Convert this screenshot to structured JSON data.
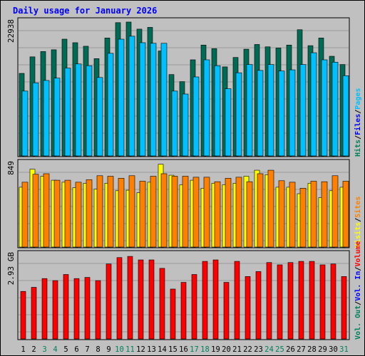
{
  "title": "Daily usage for January 2026",
  "colors": {
    "page_bg": "#c0c0c0",
    "title": "#0000ff",
    "hits": "#006b54",
    "files": "#00c0ff",
    "pages": "#00c0ff",
    "visits": "#ffff00",
    "sites": "#ff8000",
    "volume": "#ff0000",
    "weekend_label": "#00805c"
  },
  "labels": {
    "top_max": "22938",
    "mid_max": "849",
    "bot_max": "2.93 GB"
  },
  "legends": {
    "top": [
      {
        "text": "Hits",
        "color": "#00805c"
      },
      {
        "text": "/",
        "color": "#000000"
      },
      {
        "text": "Files",
        "color": "#0000ff"
      },
      {
        "text": "/",
        "color": "#000000"
      },
      {
        "text": "Pages",
        "color": "#00c0ff"
      }
    ],
    "mid": [
      {
        "text": "Visits",
        "color": "#ffff00"
      },
      {
        "text": "/",
        "color": "#000000"
      },
      {
        "text": "Sites",
        "color": "#ff8000"
      }
    ],
    "bot": [
      {
        "text": "Vol. Out",
        "color": "#00805c"
      },
      {
        "text": "/",
        "color": "#000000"
      },
      {
        "text": "Vol. In",
        "color": "#0000ff"
      },
      {
        "text": "/",
        "color": "#000000"
      },
      {
        "text": "Volume",
        "color": "#ff0000"
      }
    ]
  },
  "chart_data": {
    "type": "bar",
    "title": "Daily usage for January 2026",
    "x": [
      1,
      2,
      3,
      4,
      5,
      6,
      7,
      8,
      9,
      10,
      11,
      12,
      13,
      14,
      15,
      16,
      17,
      18,
      19,
      20,
      21,
      22,
      23,
      24,
      25,
      26,
      27,
      28,
      29,
      30,
      31
    ],
    "weekend_days": [
      3,
      4,
      10,
      11,
      17,
      18,
      24,
      25,
      31
    ],
    "panels": [
      {
        "ylim": [
          0,
          22938
        ],
        "max_label": "22938",
        "series": [
          {
            "name": "Hits",
            "values": [
              14000,
              16800,
              17700,
              18000,
              19800,
              19200,
              18600,
              16500,
              20000,
              22600,
              22700,
              21500,
              21800,
              17800,
              13800,
              12600,
              16300,
              18800,
              18200,
              15100,
              16700,
              18100,
              18900,
              18500,
              18300,
              18800,
              21400,
              18700,
              20000,
              16900,
              15500
            ]
          },
          {
            "name": "Files",
            "values": [
              11000,
              12400,
              12800,
              13200,
              14900,
              15600,
              15300,
              13300,
              17400,
              19800,
              20300,
              19200,
              19100,
              19100,
              11000,
              10500,
              13400,
              16300,
              15300,
              11400,
              14100,
              15500,
              14500,
              15500,
              14400,
              14600,
              15500,
              17500,
              16300,
              15900,
              13600
            ]
          }
        ]
      },
      {
        "ylim": [
          0,
          849
        ],
        "max_label": "849",
        "series": [
          {
            "name": "Visits",
            "values": [
              600,
              780,
              710,
              670,
              650,
              595,
              640,
              580,
              640,
              565,
              570,
              545,
              650,
              830,
              720,
              625,
              670,
              590,
              640,
              625,
              640,
              710,
              770,
              725,
              600,
              600,
              535,
              640,
              495,
              565,
              600
            ]
          },
          {
            "name": "Sites",
            "values": [
              650,
              730,
              735,
              670,
              670,
              650,
              675,
              715,
              710,
              690,
              715,
              660,
              710,
              735,
              710,
              710,
              700,
              700,
              655,
              690,
              700,
              655,
              735,
              770,
              665,
              650,
              590,
              660,
              655,
              715,
              660
            ]
          }
        ]
      },
      {
        "ylim": [
          0,
          2.93
        ],
        "max_label": "2.93 GB",
        "series": [
          {
            "name": "Volume",
            "values": [
              1.63,
              1.77,
              2.07,
              2.0,
              2.21,
              2.07,
              2.11,
              2.0,
              2.57,
              2.79,
              2.83,
              2.71,
              2.71,
              2.42,
              1.71,
              1.94,
              2.21,
              2.66,
              2.71,
              1.94,
              2.66,
              2.14,
              2.31,
              2.62,
              2.54,
              2.62,
              2.66,
              2.66,
              2.54,
              2.57,
              2.14
            ]
          }
        ]
      }
    ]
  }
}
